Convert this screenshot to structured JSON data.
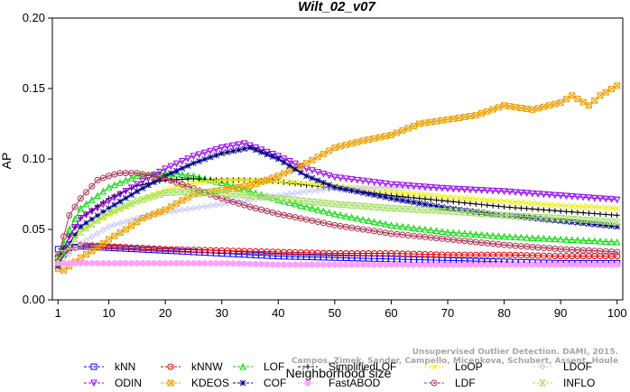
{
  "chart_data": {
    "type": "line",
    "title": "Wilt_02_v07",
    "xlabel": "Neighborhood size",
    "ylabel": "AP",
    "xlim": [
      0,
      101
    ],
    "ylim": [
      0,
      0.2
    ],
    "xticks": [
      1,
      10,
      20,
      30,
      40,
      50,
      60,
      70,
      80,
      90,
      100
    ],
    "yticks": [
      "0.00",
      "0.05",
      "0.10",
      "0.15",
      "0.20"
    ],
    "grid": false,
    "legend_position": "bottom",
    "series": [
      {
        "name": "kNN",
        "color": "#0000ff",
        "marker": "square",
        "x": [
          1,
          5,
          10,
          20,
          30,
          40,
          50,
          60,
          70,
          80,
          90,
          100
        ],
        "y": [
          0.036,
          0.038,
          0.037,
          0.035,
          0.033,
          0.031,
          0.03,
          0.029,
          0.028,
          0.027,
          0.026,
          0.026
        ]
      },
      {
        "name": "kNNW",
        "color": "#e00000",
        "marker": "circle",
        "x": [
          1,
          5,
          10,
          20,
          30,
          40,
          50,
          60,
          70,
          80,
          90,
          100
        ],
        "y": [
          0.031,
          0.039,
          0.038,
          0.036,
          0.035,
          0.034,
          0.033,
          0.033,
          0.032,
          0.032,
          0.031,
          0.031
        ]
      },
      {
        "name": "LOF",
        "color": "#00dd00",
        "marker": "triangle-up",
        "x": [
          1,
          3,
          5,
          10,
          15,
          20,
          25,
          30,
          35,
          40,
          50,
          60,
          70,
          80,
          90,
          100
        ],
        "y": [
          0.03,
          0.05,
          0.065,
          0.08,
          0.088,
          0.09,
          0.088,
          0.083,
          0.077,
          0.071,
          0.061,
          0.053,
          0.048,
          0.045,
          0.043,
          0.041
        ]
      },
      {
        "name": "SimplifiedLOF",
        "color": "#000000",
        "marker": "plus",
        "x": [
          1,
          3,
          5,
          10,
          15,
          20,
          25,
          30,
          35,
          40,
          50,
          60,
          70,
          80,
          90,
          100
        ],
        "y": [
          0.028,
          0.045,
          0.058,
          0.072,
          0.081,
          0.085,
          0.086,
          0.085,
          0.085,
          0.084,
          0.079,
          0.074,
          0.07,
          0.066,
          0.063,
          0.06
        ]
      },
      {
        "name": "LoOP",
        "color": "#f0f000",
        "marker": "x",
        "x": [
          1,
          3,
          5,
          10,
          15,
          20,
          25,
          30,
          35,
          40,
          50,
          60,
          70,
          80,
          90,
          100
        ],
        "y": [
          0.025,
          0.04,
          0.05,
          0.06,
          0.07,
          0.078,
          0.083,
          0.085,
          0.085,
          0.084,
          0.081,
          0.077,
          0.073,
          0.07,
          0.067,
          0.065
        ]
      },
      {
        "name": "LDOF",
        "color": "#c8c8ff",
        "marker": "diamond",
        "x": [
          1,
          5,
          10,
          15,
          20,
          25,
          30,
          35,
          40,
          45,
          50,
          60,
          70,
          80,
          90,
          100
        ],
        "y": [
          0.025,
          0.04,
          0.052,
          0.058,
          0.062,
          0.065,
          0.068,
          0.071,
          0.074,
          0.077,
          0.079,
          0.08,
          0.079,
          0.077,
          0.074,
          0.072
        ]
      },
      {
        "name": "ODIN",
        "color": "#9900ee",
        "marker": "triangle-down",
        "x": [
          1,
          3,
          5,
          10,
          15,
          20,
          25,
          30,
          34,
          40,
          45,
          50,
          60,
          70,
          80,
          90,
          100
        ],
        "y": [
          0.026,
          0.045,
          0.058,
          0.07,
          0.082,
          0.093,
          0.102,
          0.108,
          0.111,
          0.102,
          0.093,
          0.087,
          0.082,
          0.079,
          0.077,
          0.074,
          0.071
        ]
      },
      {
        "name": "KDEOS",
        "color": "#f0a000",
        "marker": "square-x",
        "x": [
          1,
          2,
          5,
          8,
          10,
          13,
          16,
          20,
          25,
          30,
          35,
          40,
          45,
          50,
          55,
          60,
          65,
          70,
          75,
          80,
          85,
          90,
          92,
          95,
          97,
          100
        ],
        "y": [
          0.022,
          0.021,
          0.03,
          0.037,
          0.043,
          0.05,
          0.058,
          0.064,
          0.075,
          0.078,
          0.081,
          0.088,
          0.097,
          0.108,
          0.113,
          0.117,
          0.125,
          0.128,
          0.131,
          0.138,
          0.135,
          0.14,
          0.145,
          0.138,
          0.145,
          0.152
        ]
      },
      {
        "name": "COF",
        "color": "#00008b",
        "marker": "star",
        "x": [
          1,
          3,
          5,
          10,
          15,
          20,
          25,
          30,
          35,
          40,
          45,
          50,
          60,
          70,
          80,
          90,
          100
        ],
        "y": [
          0.024,
          0.04,
          0.052,
          0.065,
          0.077,
          0.088,
          0.097,
          0.104,
          0.108,
          0.1,
          0.088,
          0.08,
          0.072,
          0.065,
          0.06,
          0.056,
          0.052
        ]
      },
      {
        "name": "FastABOD",
        "color": "#ffa0ff",
        "marker": "circle-filled",
        "x": [
          1,
          5,
          10,
          20,
          30,
          40,
          50,
          60,
          70,
          80,
          90,
          100
        ],
        "y": [
          0.026,
          0.026,
          0.026,
          0.026,
          0.026,
          0.025,
          0.025,
          0.025,
          0.025,
          0.025,
          0.025,
          0.025
        ]
      },
      {
        "name": "LDF",
        "color": "#b03050",
        "marker": "circle-dot",
        "x": [
          1,
          3,
          5,
          8,
          10,
          12,
          15,
          20,
          25,
          30,
          35,
          40,
          50,
          60,
          70,
          80,
          90,
          100
        ],
        "y": [
          0.03,
          0.06,
          0.072,
          0.085,
          0.088,
          0.09,
          0.09,
          0.086,
          0.079,
          0.072,
          0.066,
          0.061,
          0.053,
          0.047,
          0.043,
          0.039,
          0.036,
          0.034
        ]
      },
      {
        "name": "INFLO",
        "color": "#a0e060",
        "marker": "hourglass",
        "x": [
          1,
          3,
          5,
          10,
          15,
          20,
          25,
          30,
          35,
          40,
          50,
          60,
          70,
          80,
          90,
          100
        ],
        "y": [
          0.028,
          0.038,
          0.048,
          0.062,
          0.07,
          0.076,
          0.077,
          0.076,
          0.074,
          0.072,
          0.068,
          0.065,
          0.063,
          0.06,
          0.058,
          0.055
        ]
      }
    ],
    "legend_rows": [
      [
        "kNN",
        "kNNW",
        "LOF",
        "SimplifiedLOF",
        "LoOP",
        "LDOF"
      ],
      [
        "ODIN",
        "KDEOS",
        "COF",
        "FastABOD",
        "LDF",
        "INFLO"
      ]
    ]
  },
  "watermark": {
    "line1": "Unsupervised Outlier Detection. DAMI, 2015.",
    "line2": "Campos, Zimek, Sander, Campello, Micenkova, Schubert, Assent, Houle"
  }
}
